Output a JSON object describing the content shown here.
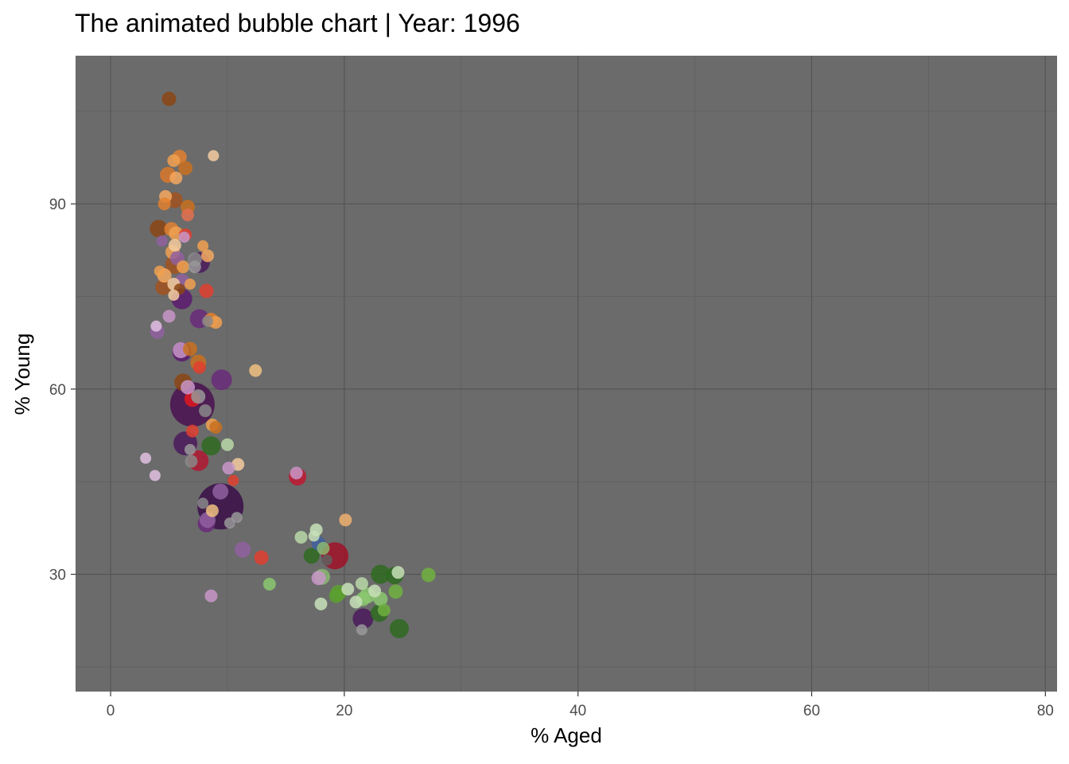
{
  "chart_data": {
    "type": "scatter",
    "title": "The animated bubble chart | Year: 1996",
    "xlabel": "% Aged",
    "ylabel": "% Young",
    "xlim": [
      -3,
      81
    ],
    "ylim": [
      11,
      114
    ],
    "x_ticks": [
      0,
      20,
      40,
      60,
      80
    ],
    "x_tick_labels": [
      "0",
      "20",
      "40",
      "60",
      "80"
    ],
    "x_minor": [
      10,
      30,
      50,
      70
    ],
    "y_ticks": [
      30,
      60,
      90
    ],
    "y_tick_labels": [
      "30",
      "60",
      "90"
    ],
    "y_minor": [
      15,
      45,
      75,
      105
    ],
    "grid": true,
    "legend": "none",
    "panel_background": "#6b6b6b",
    "bubble_opacity": 0.85,
    "points": [
      {
        "x": 5.0,
        "y": 107.0,
        "r": 9,
        "c": "#8b4513"
      },
      {
        "x": 8.8,
        "y": 97.8,
        "r": 7,
        "c": "#f5cba0"
      },
      {
        "x": 5.9,
        "y": 97.6,
        "r": 9,
        "c": "#e08030"
      },
      {
        "x": 5.4,
        "y": 97.0,
        "r": 8,
        "c": "#f0a050"
      },
      {
        "x": 6.4,
        "y": 95.8,
        "r": 9,
        "c": "#c8701e"
      },
      {
        "x": 4.9,
        "y": 94.7,
        "r": 10,
        "c": "#d9782a"
      },
      {
        "x": 5.6,
        "y": 94.2,
        "r": 8,
        "c": "#f5a860"
      },
      {
        "x": 4.7,
        "y": 91.2,
        "r": 8,
        "c": "#f5a860"
      },
      {
        "x": 5.5,
        "y": 90.6,
        "r": 10,
        "c": "#a0521e"
      },
      {
        "x": 4.6,
        "y": 90.0,
        "r": 8,
        "c": "#e08030"
      },
      {
        "x": 6.6,
        "y": 89.5,
        "r": 9,
        "c": "#c8701e"
      },
      {
        "x": 6.6,
        "y": 88.2,
        "r": 8,
        "c": "#e07050"
      },
      {
        "x": 4.1,
        "y": 86.0,
        "r": 11,
        "c": "#8b4513"
      },
      {
        "x": 5.2,
        "y": 85.9,
        "r": 9,
        "c": "#e08030"
      },
      {
        "x": 5.6,
        "y": 85.2,
        "r": 9,
        "c": "#f0a050"
      },
      {
        "x": 6.4,
        "y": 85.0,
        "r": 8,
        "c": "#e04030"
      },
      {
        "x": 6.3,
        "y": 84.6,
        "r": 7,
        "c": "#c896c8"
      },
      {
        "x": 4.4,
        "y": 84.0,
        "r": 7,
        "c": "#9060a0"
      },
      {
        "x": 5.5,
        "y": 83.3,
        "r": 8,
        "c": "#f5cba0"
      },
      {
        "x": 7.9,
        "y": 83.2,
        "r": 7,
        "c": "#f0a050"
      },
      {
        "x": 5.3,
        "y": 82.2,
        "r": 9,
        "c": "#f0a050"
      },
      {
        "x": 8.3,
        "y": 81.6,
        "r": 8,
        "c": "#f5a860"
      },
      {
        "x": 5.7,
        "y": 81.2,
        "r": 9,
        "c": "#9060a0"
      },
      {
        "x": 7.2,
        "y": 81.0,
        "r": 9,
        "c": "#888888"
      },
      {
        "x": 7.6,
        "y": 80.5,
        "r": 13,
        "c": "#4a1a5a"
      },
      {
        "x": 5.5,
        "y": 80.2,
        "r": 12,
        "c": "#a0521e"
      },
      {
        "x": 6.2,
        "y": 79.8,
        "r": 8,
        "c": "#f0a050"
      },
      {
        "x": 4.2,
        "y": 79.1,
        "r": 7,
        "c": "#f0a050"
      },
      {
        "x": 7.2,
        "y": 79.8,
        "r": 8,
        "c": "#999999"
      },
      {
        "x": 4.6,
        "y": 78.4,
        "r": 9,
        "c": "#f5a860"
      },
      {
        "x": 6.1,
        "y": 77.5,
        "r": 9,
        "c": "#9060a0"
      },
      {
        "x": 5.4,
        "y": 77.0,
        "r": 8,
        "c": "#f5cba0"
      },
      {
        "x": 6.8,
        "y": 77.0,
        "r": 7,
        "c": "#f0a050"
      },
      {
        "x": 4.5,
        "y": 76.5,
        "r": 10,
        "c": "#a0521e"
      },
      {
        "x": 5.9,
        "y": 76.2,
        "r": 7,
        "c": "#8b4513"
      },
      {
        "x": 8.2,
        "y": 75.9,
        "r": 9,
        "c": "#e04030"
      },
      {
        "x": 5.4,
        "y": 75.2,
        "r": 7,
        "c": "#f5cba0"
      },
      {
        "x": 6.1,
        "y": 74.6,
        "r": 13,
        "c": "#5a1a6e"
      },
      {
        "x": 5.0,
        "y": 71.8,
        "r": 8,
        "c": "#c896c8"
      },
      {
        "x": 7.6,
        "y": 71.4,
        "r": 12,
        "c": "#6a2a7a"
      },
      {
        "x": 8.6,
        "y": 71.2,
        "r": 9,
        "c": "#e08030"
      },
      {
        "x": 9.0,
        "y": 70.8,
        "r": 8,
        "c": "#f0a050"
      },
      {
        "x": 3.9,
        "y": 70.2,
        "r": 7,
        "c": "#e0c0e0"
      },
      {
        "x": 8.3,
        "y": 71.0,
        "r": 7,
        "c": "#888888"
      },
      {
        "x": 4.0,
        "y": 69.3,
        "r": 9,
        "c": "#9060a0"
      },
      {
        "x": 6.8,
        "y": 66.5,
        "r": 9,
        "c": "#c8701e"
      },
      {
        "x": 6.0,
        "y": 66.3,
        "r": 10,
        "c": "#c896c8"
      },
      {
        "x": 6.1,
        "y": 66.0,
        "r": 12,
        "c": "#5a1a6e"
      },
      {
        "x": 7.5,
        "y": 64.3,
        "r": 10,
        "c": "#c8701e"
      },
      {
        "x": 7.6,
        "y": 63.5,
        "r": 8,
        "c": "#e04030"
      },
      {
        "x": 12.4,
        "y": 63.0,
        "r": 8,
        "c": "#f0c080"
      },
      {
        "x": 9.5,
        "y": 61.5,
        "r": 13,
        "c": "#6a2a7a"
      },
      {
        "x": 6.2,
        "y": 61.1,
        "r": 11,
        "c": "#8b4513"
      },
      {
        "x": 6.6,
        "y": 60.3,
        "r": 9,
        "c": "#c896c8"
      },
      {
        "x": 7.5,
        "y": 58.8,
        "r": 9,
        "c": "#999999"
      },
      {
        "x": 7.0,
        "y": 57.5,
        "r": 28,
        "c": "#4a1050"
      },
      {
        "x": 7.0,
        "y": 58.4,
        "r": 10,
        "c": "#e01820"
      },
      {
        "x": 8.1,
        "y": 56.5,
        "r": 8,
        "c": "#888888"
      },
      {
        "x": 8.7,
        "y": 54.2,
        "r": 8,
        "c": "#f0a050"
      },
      {
        "x": 9.0,
        "y": 53.8,
        "r": 8,
        "c": "#c8701e"
      },
      {
        "x": 7.0,
        "y": 53.2,
        "r": 8,
        "c": "#e04030"
      },
      {
        "x": 6.4,
        "y": 51.2,
        "r": 15,
        "c": "#4a1a5a"
      },
      {
        "x": 8.6,
        "y": 50.8,
        "r": 12,
        "c": "#2e6a20"
      },
      {
        "x": 10.0,
        "y": 51.0,
        "r": 8,
        "c": "#b8d8a8"
      },
      {
        "x": 6.8,
        "y": 50.2,
        "r": 7,
        "c": "#999999"
      },
      {
        "x": 7.5,
        "y": 48.4,
        "r": 13,
        "c": "#b01830"
      },
      {
        "x": 6.9,
        "y": 48.3,
        "r": 8,
        "c": "#888888"
      },
      {
        "x": 3.0,
        "y": 48.8,
        "r": 7,
        "c": "#e0c0e0"
      },
      {
        "x": 10.9,
        "y": 47.8,
        "r": 8,
        "c": "#f5cba0"
      },
      {
        "x": 10.1,
        "y": 47.2,
        "r": 8,
        "c": "#c896c8"
      },
      {
        "x": 3.8,
        "y": 46.0,
        "r": 7,
        "c": "#e0c0e0"
      },
      {
        "x": 16.0,
        "y": 45.8,
        "r": 11,
        "c": "#c01830"
      },
      {
        "x": 15.9,
        "y": 46.4,
        "r": 8,
        "c": "#c896c8"
      },
      {
        "x": 10.5,
        "y": 45.2,
        "r": 7,
        "c": "#e04030"
      },
      {
        "x": 9.4,
        "y": 41.0,
        "r": 29,
        "c": "#3a0e48"
      },
      {
        "x": 9.4,
        "y": 43.4,
        "r": 10,
        "c": "#9060a0"
      },
      {
        "x": 7.9,
        "y": 41.5,
        "r": 7,
        "c": "#888888"
      },
      {
        "x": 8.7,
        "y": 40.3,
        "r": 8,
        "c": "#f0c080"
      },
      {
        "x": 8.3,
        "y": 38.8,
        "r": 10,
        "c": "#9060a0"
      },
      {
        "x": 8.2,
        "y": 38.2,
        "r": 11,
        "c": "#6a2a7a"
      },
      {
        "x": 10.8,
        "y": 39.2,
        "r": 7,
        "c": "#999999"
      },
      {
        "x": 10.2,
        "y": 38.3,
        "r": 7,
        "c": "#999999"
      },
      {
        "x": 20.1,
        "y": 38.8,
        "r": 8,
        "c": "#f0b070"
      },
      {
        "x": 17.6,
        "y": 37.2,
        "r": 8,
        "c": "#c8e0b8"
      },
      {
        "x": 16.3,
        "y": 36.0,
        "r": 8,
        "c": "#b8d8a8"
      },
      {
        "x": 17.4,
        "y": 36.2,
        "r": 7,
        "c": "#c8e0b8"
      },
      {
        "x": 17.8,
        "y": 35.0,
        "r": 9,
        "c": "#4060a0"
      },
      {
        "x": 11.3,
        "y": 34.0,
        "r": 10,
        "c": "#9060a0"
      },
      {
        "x": 18.2,
        "y": 34.2,
        "r": 8,
        "c": "#8bb870"
      },
      {
        "x": 19.2,
        "y": 33.0,
        "r": 17,
        "c": "#a01028"
      },
      {
        "x": 17.2,
        "y": 33.0,
        "r": 10,
        "c": "#2e6a20"
      },
      {
        "x": 12.9,
        "y": 32.7,
        "r": 9,
        "c": "#e04030"
      },
      {
        "x": 18.5,
        "y": 32.3,
        "r": 7,
        "c": "#606060"
      },
      {
        "x": 23.1,
        "y": 30.0,
        "r": 12,
        "c": "#2e6a20"
      },
      {
        "x": 24.6,
        "y": 30.3,
        "r": 8,
        "c": "#c8e0b8"
      },
      {
        "x": 24.3,
        "y": 29.8,
        "r": 11,
        "c": "#2e6a20"
      },
      {
        "x": 27.2,
        "y": 29.9,
        "r": 9,
        "c": "#70b040"
      },
      {
        "x": 18.1,
        "y": 29.6,
        "r": 10,
        "c": "#8bb870"
      },
      {
        "x": 17.8,
        "y": 29.4,
        "r": 9,
        "c": "#c896c8"
      },
      {
        "x": 21.5,
        "y": 28.5,
        "r": 8,
        "c": "#b8d8a8"
      },
      {
        "x": 13.6,
        "y": 28.4,
        "r": 8,
        "c": "#8bc870"
      },
      {
        "x": 20.3,
        "y": 27.6,
        "r": 8,
        "c": "#c8e0b8"
      },
      {
        "x": 19.5,
        "y": 27.0,
        "r": 10,
        "c": "#5aa030"
      },
      {
        "x": 22.6,
        "y": 27.3,
        "r": 8,
        "c": "#c8e0b8"
      },
      {
        "x": 24.4,
        "y": 27.2,
        "r": 9,
        "c": "#70b040"
      },
      {
        "x": 19.3,
        "y": 26.5,
        "r": 9,
        "c": "#5aa030"
      },
      {
        "x": 22.0,
        "y": 26.6,
        "r": 10,
        "c": "#8bc870"
      },
      {
        "x": 21.0,
        "y": 25.5,
        "r": 8,
        "c": "#c8e0b8"
      },
      {
        "x": 23.1,
        "y": 26.0,
        "r": 9,
        "c": "#8bc870"
      },
      {
        "x": 21.6,
        "y": 26.0,
        "r": 9,
        "c": "#8bc870"
      },
      {
        "x": 18.0,
        "y": 25.2,
        "r": 8,
        "c": "#c8e0b8"
      },
      {
        "x": 8.6,
        "y": 26.5,
        "r": 8,
        "c": "#c896c8"
      },
      {
        "x": 23.4,
        "y": 24.2,
        "r": 8,
        "c": "#70b040"
      },
      {
        "x": 23.0,
        "y": 23.7,
        "r": 11,
        "c": "#2e6a20"
      },
      {
        "x": 21.6,
        "y": 22.8,
        "r": 13,
        "c": "#4a1a5a"
      },
      {
        "x": 24.7,
        "y": 21.2,
        "r": 12,
        "c": "#2e6a20"
      },
      {
        "x": 21.5,
        "y": 21.0,
        "r": 7,
        "c": "#999999"
      }
    ]
  }
}
